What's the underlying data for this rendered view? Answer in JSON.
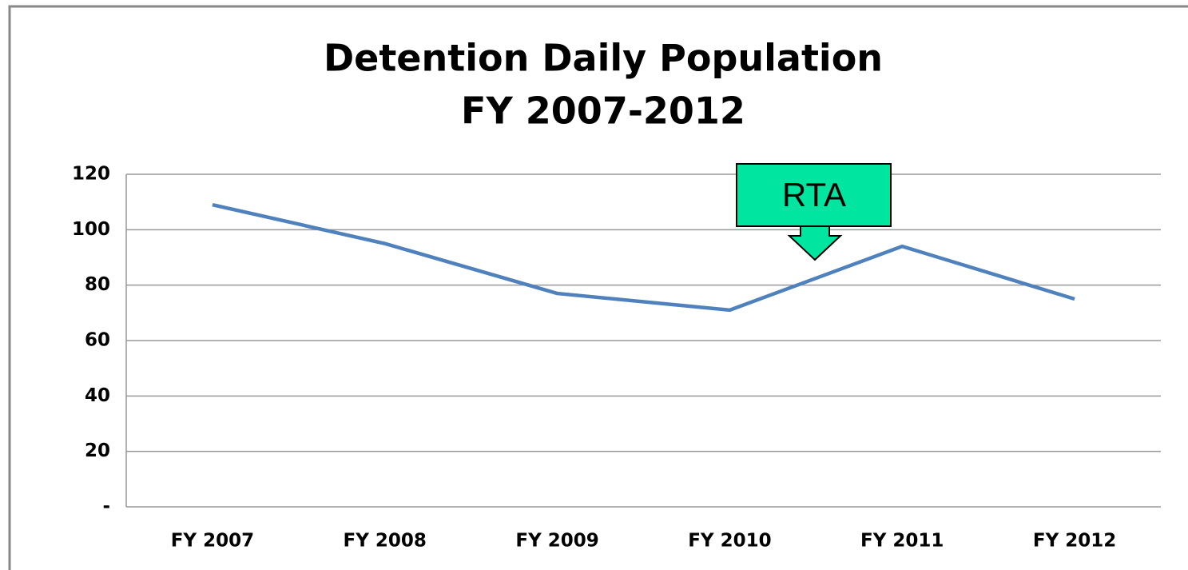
{
  "chart_data": {
    "type": "line",
    "title": [
      "Detention Daily Population",
      "FY 2007-2012"
    ],
    "categories": [
      "FY 2007",
      "FY 2008",
      "FY 2009",
      "FY 2010",
      "FY 2011",
      "FY 2012"
    ],
    "series": [
      {
        "color": "#4f81bd",
        "values": [
          109,
          95,
          77,
          71,
          94,
          75
        ]
      }
    ],
    "ylim": [
      0,
      120
    ],
    "yticks": [
      {
        "value": 0,
        "label": "-"
      },
      20,
      40,
      60,
      80,
      100,
      120
    ],
    "grid": true,
    "annotations": [
      "RTA"
    ]
  }
}
